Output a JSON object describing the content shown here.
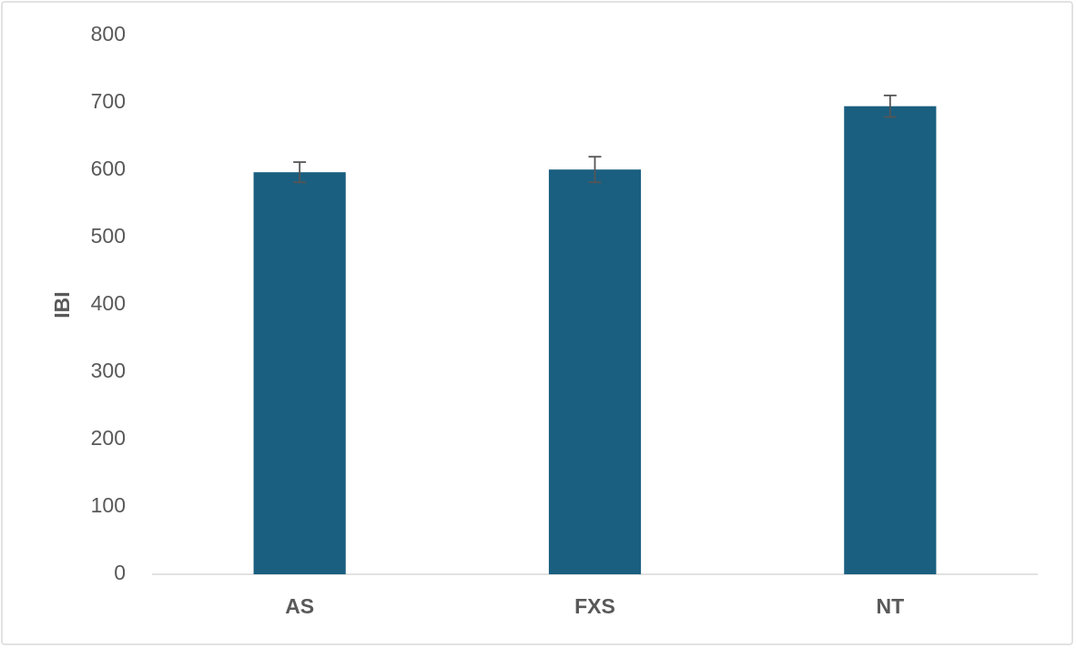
{
  "chart_data": {
    "type": "bar",
    "y_label": "IBI",
    "categories": [
      "AS",
      "FXS",
      "NT"
    ],
    "values": [
      597,
      601,
      695
    ],
    "errors": [
      15,
      19,
      16
    ],
    "color": "#1a5f80",
    "error_color": "#555555",
    "ylim": [
      0,
      800
    ],
    "yticks": [
      0,
      100,
      200,
      300,
      400,
      500,
      600,
      700,
      800
    ],
    "grid": false
  }
}
